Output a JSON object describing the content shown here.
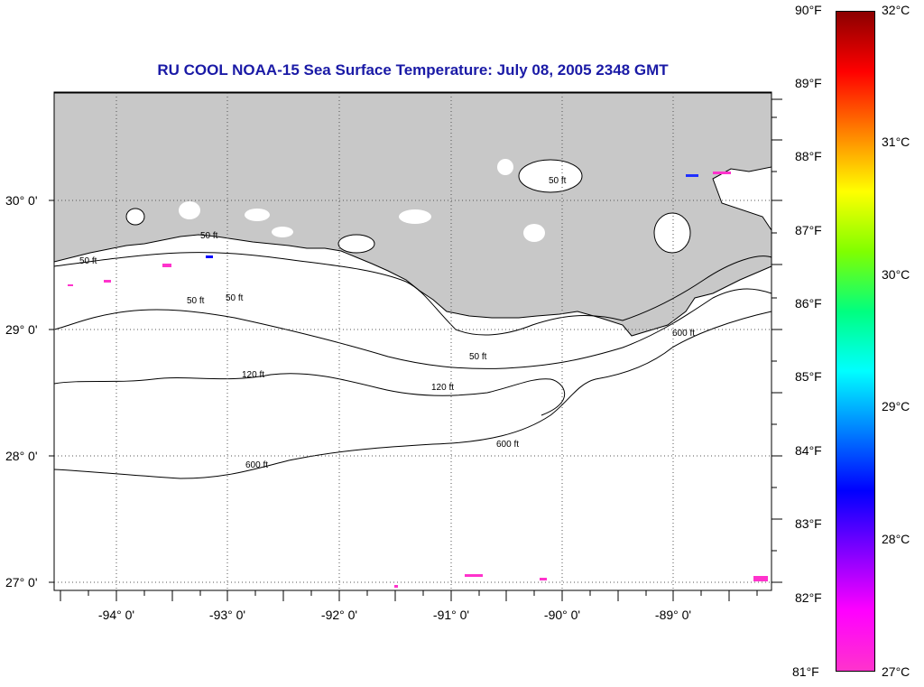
{
  "title": "RU COOL  NOAA-15  Sea Surface Temperature:  July 08, 2005 2348 GMT",
  "lon_labels": [
    "-94° 0'",
    "-93° 0'",
    "-92° 0'",
    "-91° 0'",
    "-90° 0'",
    "-89° 0'"
  ],
  "lat_labels": [
    "30° 0'",
    "29° 0'",
    "28° 0'",
    "27° 0'"
  ],
  "contour_labels": [
    "50 ft",
    "120 ft",
    "600 ft"
  ],
  "colors": {
    "land": "#c8c8c8",
    "title": "#1a1aa6",
    "cold_pixels": "#ff33cc"
  },
  "colorbar": {
    "fahrenheit_labels": [
      "90°F",
      "89°F",
      "88°F",
      "87°F",
      "86°F",
      "85°F",
      "84°F",
      "83°F",
      "82°F",
      "81°F"
    ],
    "celsius_labels": [
      "32°C",
      "31°C",
      "30°C",
      "29°C",
      "28°C",
      "27°C"
    ],
    "stops": [
      "#8b0000",
      "#ff0000",
      "#ff8000",
      "#ffff00",
      "#80ff00",
      "#00ff80",
      "#00ffff",
      "#0080ff",
      "#0000ff",
      "#8000ff",
      "#ff00ff",
      "#ff33cc"
    ]
  }
}
